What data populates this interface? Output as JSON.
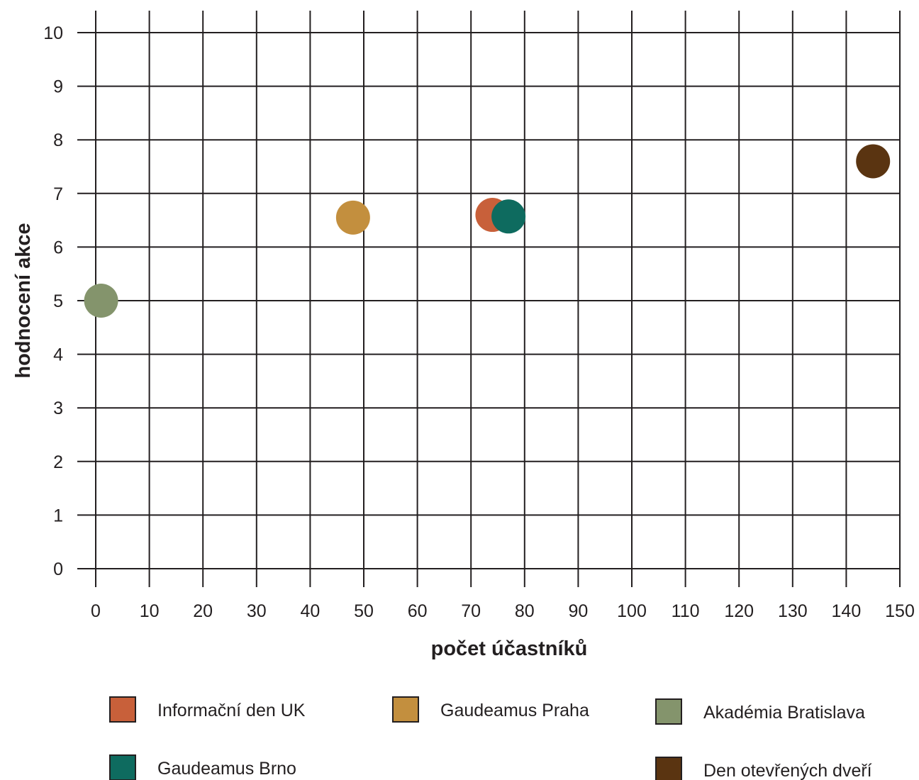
{
  "chart_data": {
    "type": "scatter",
    "xlabel": "počet účastníků",
    "ylabel": "hodnocení akce",
    "xlim": [
      0,
      150
    ],
    "ylim": [
      0,
      10
    ],
    "x_ticks": [
      0,
      10,
      20,
      30,
      40,
      50,
      60,
      70,
      80,
      90,
      100,
      110,
      120,
      130,
      140,
      150
    ],
    "y_ticks": [
      0,
      1,
      2,
      3,
      4,
      5,
      6,
      7,
      8,
      9,
      10
    ],
    "grid": true,
    "legend_position": "bottom",
    "series": [
      {
        "name": "Informační den UK",
        "color": "#c8603a",
        "x": 74,
        "y": 6.6
      },
      {
        "name": "Gaudeamus Praha",
        "color": "#c38f3e",
        "x": 48,
        "y": 6.55
      },
      {
        "name": "Akadémia Bratislava",
        "color": "#84946c",
        "x": 1,
        "y": 5.0
      },
      {
        "name": "Gaudeamus Brno",
        "color": "#0e6b5f",
        "x": 77,
        "y": 6.57
      },
      {
        "name": "Den otevřených dveří",
        "color": "#5a3411",
        "x": 145,
        "y": 7.6
      }
    ]
  }
}
